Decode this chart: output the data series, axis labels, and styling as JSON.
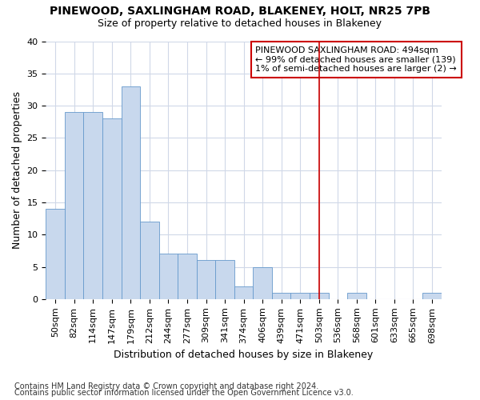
{
  "title": "PINEWOOD, SAXLINGHAM ROAD, BLAKENEY, HOLT, NR25 7PB",
  "subtitle": "Size of property relative to detached houses in Blakeney",
  "xlabel": "Distribution of detached houses by size in Blakeney",
  "ylabel": "Number of detached properties",
  "footnote1": "Contains HM Land Registry data © Crown copyright and database right 2024.",
  "footnote2": "Contains public sector information licensed under the Open Government Licence v3.0.",
  "bar_labels": [
    "50sqm",
    "82sqm",
    "114sqm",
    "147sqm",
    "179sqm",
    "212sqm",
    "244sqm",
    "277sqm",
    "309sqm",
    "341sqm",
    "374sqm",
    "406sqm",
    "439sqm",
    "471sqm",
    "503sqm",
    "536sqm",
    "568sqm",
    "601sqm",
    "633sqm",
    "665sqm",
    "698sqm"
  ],
  "bar_values": [
    14,
    29,
    29,
    28,
    33,
    12,
    7,
    7,
    6,
    6,
    2,
    5,
    1,
    1,
    1,
    0,
    1,
    0,
    0,
    0,
    1
  ],
  "bar_color": "#c8d8ed",
  "bar_edgecolor": "#6699cc",
  "background_color": "#ffffff",
  "grid_color": "#d0d8e8",
  "ylim": [
    0,
    40
  ],
  "yticks": [
    0,
    5,
    10,
    15,
    20,
    25,
    30,
    35,
    40
  ],
  "vline_index": 14,
  "vline_color": "#cc0000",
  "annotation_text": "PINEWOOD SAXLINGHAM ROAD: 494sqm\n← 99% of detached houses are smaller (139)\n1% of semi-detached houses are larger (2) →",
  "annotation_box_facecolor": "#ffffff",
  "annotation_box_edgecolor": "#cc0000",
  "title_fontsize": 10,
  "subtitle_fontsize": 9,
  "ylabel_fontsize": 9,
  "xlabel_fontsize": 9,
  "tick_fontsize": 8,
  "annot_fontsize": 8,
  "footnote_fontsize": 7
}
